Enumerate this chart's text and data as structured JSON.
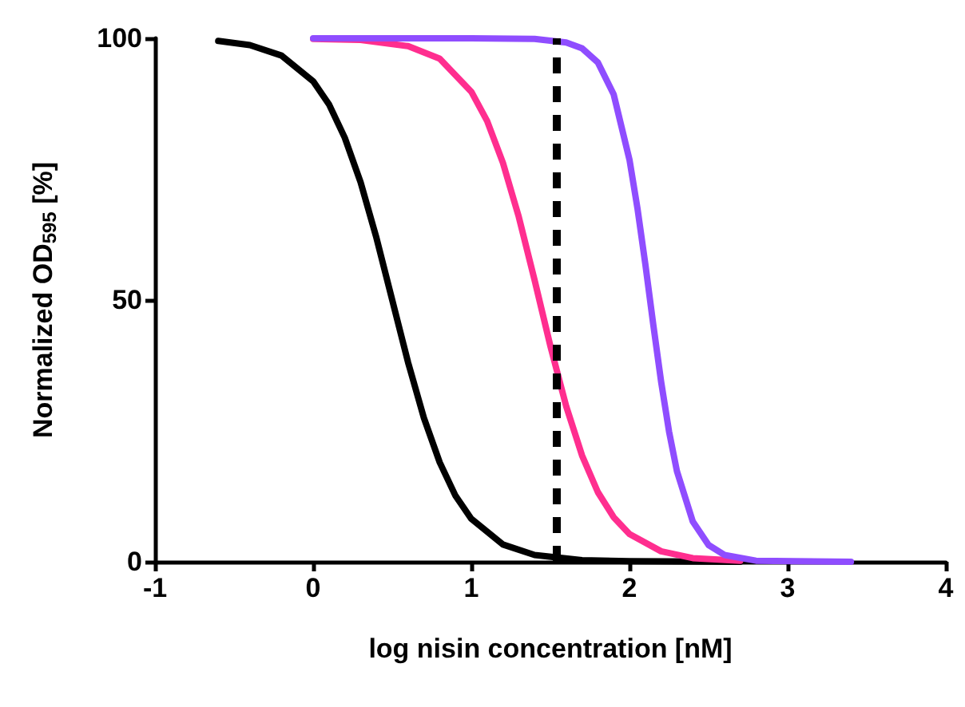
{
  "chart_data": {
    "type": "line",
    "xlabel": "log nisin concentration [nM]",
    "ylabel": "Normalized OD$_{595}$ [%]",
    "xlim": [
      -1,
      4
    ],
    "xticks": [
      -1,
      0,
      1,
      2,
      3,
      4
    ],
    "ylim": [
      0,
      100
    ],
    "yticks": [
      0,
      50,
      100
    ],
    "marker": "none",
    "line_style": "solid",
    "series": [
      {
        "color": "#000000",
        "x": [
          -0.6,
          -0.4,
          -0.2,
          0,
          0.1,
          0.2,
          0.3,
          0.4,
          0.5,
          0.6,
          0.7,
          0.8,
          0.9,
          1.0,
          1.2,
          1.4,
          1.7,
          2.0,
          2.7
        ],
        "values": [
          99.5,
          98.7,
          96.7,
          91.8,
          87.4,
          81.0,
          72.5,
          61.9,
          50,
          38.1,
          27.5,
          19.0,
          12.6,
          8.2,
          3.3,
          1.3,
          0.3,
          0.1,
          0
        ]
      },
      {
        "color": "#ff2e8f",
        "x": [
          0,
          0.3,
          0.6,
          0.8,
          1.0,
          1.1,
          1.2,
          1.3,
          1.4,
          1.5,
          1.6,
          1.7,
          1.8,
          1.9,
          2.0,
          2.2,
          2.4,
          2.7
        ],
        "values": [
          99.9,
          99.7,
          98.5,
          96.1,
          89.8,
          84.2,
          76.2,
          65.9,
          53.8,
          41.2,
          29.7,
          20.3,
          13.3,
          8.5,
          5.3,
          2.0,
          0.7,
          0.2
        ]
      },
      {
        "color": "#8f4dff",
        "x": [
          0,
          1.0,
          1.4,
          1.6,
          1.7,
          1.8,
          1.9,
          2.0,
          2.05,
          2.1,
          2.15,
          2.2,
          2.25,
          2.3,
          2.4,
          2.5,
          2.6,
          2.8,
          3.4
        ],
        "values": [
          100,
          100,
          99.9,
          99.2,
          98.1,
          95.4,
          89.3,
          76.8,
          67.6,
          56.9,
          45.4,
          34.4,
          24.9,
          17.3,
          7.7,
          3.2,
          1.3,
          0.2,
          0
        ]
      }
    ],
    "ref_lines": [
      {
        "axis": "x",
        "value": 1.54,
        "color": "#000000",
        "line_style": "dashed"
      }
    ]
  }
}
